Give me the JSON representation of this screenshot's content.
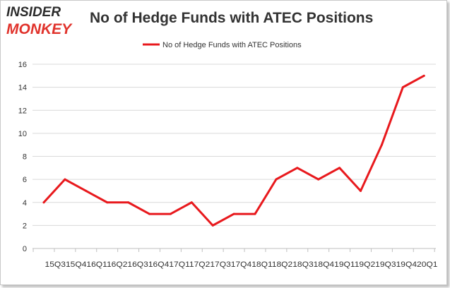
{
  "logo": {
    "line1": "INSIDER",
    "line2": "MONKEY"
  },
  "colors": {
    "series": "#e8191d",
    "grid": "#d9d9d9",
    "text": "#333333"
  },
  "chart_data": {
    "type": "line",
    "title": "No of Hedge Funds with ATEC Positions",
    "legend": "top-center",
    "grid": true,
    "ylim": [
      0,
      16
    ],
    "yticks": [
      0,
      2,
      4,
      6,
      8,
      10,
      12,
      14,
      16
    ],
    "x_tick_text": "15Q315Q416Q116Q216Q316Q417Q117Q217Q317Q418Q118Q218Q318Q419Q119Q219Q319Q420Q1",
    "categories": [
      "15Q3",
      "15Q4",
      "16Q1",
      "16Q2",
      "16Q3",
      "16Q4",
      "17Q1",
      "17Q2",
      "17Q3",
      "17Q4",
      "18Q1",
      "18Q2",
      "18Q3",
      "18Q4",
      "19Q1",
      "19Q2",
      "19Q3",
      "19Q4",
      "20Q1"
    ],
    "series": [
      {
        "name": "No of Hedge Funds with ATEC Positions",
        "values": [
          4,
          6,
          5,
          4,
          4,
          3,
          3,
          4,
          2,
          3,
          3,
          6,
          7,
          6,
          7,
          5,
          9,
          14,
          15
        ]
      }
    ]
  }
}
